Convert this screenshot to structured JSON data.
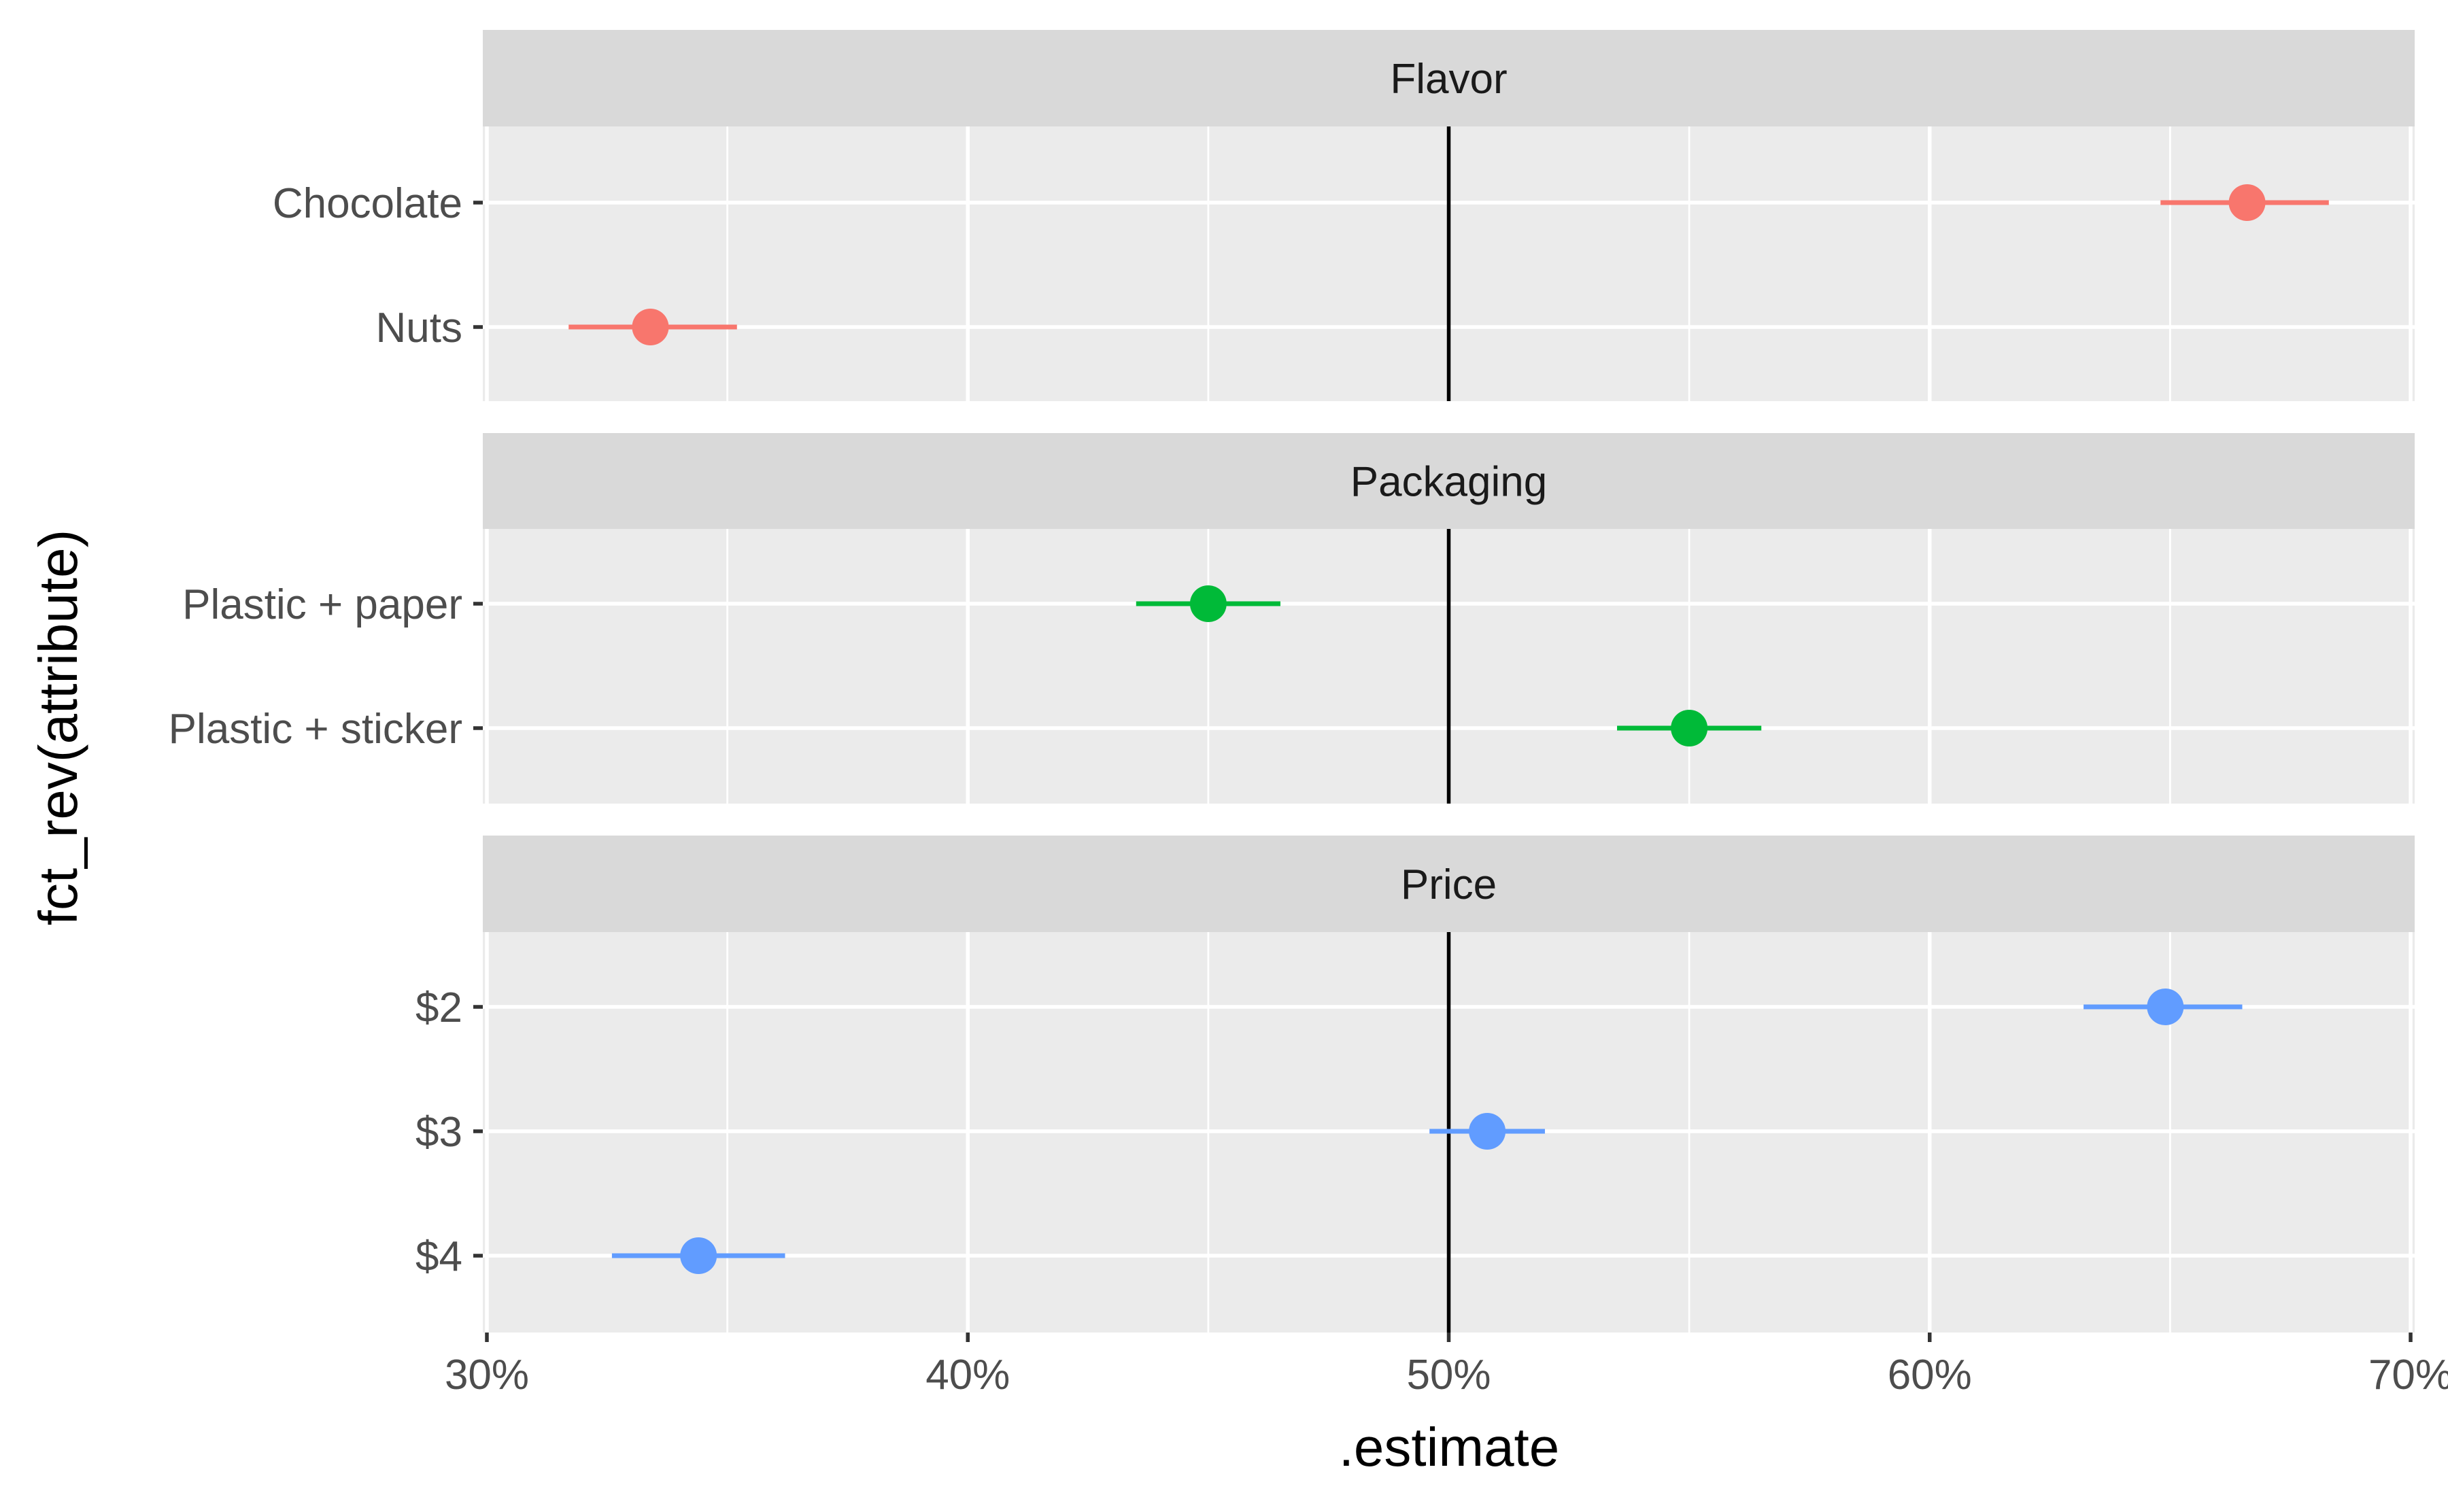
{
  "chart_data": {
    "type": "scatter",
    "subtype": "faceted point-range",
    "xlabel": ".estimate",
    "ylabel": "fct_rev(attribute)",
    "xlim": [
      30,
      70
    ],
    "x_ticks": [
      30,
      40,
      50,
      60,
      70
    ],
    "x_tick_labels": [
      "30%",
      "40%",
      "50%",
      "60%",
      "70%"
    ],
    "reference_line_x": 50,
    "grid": true,
    "legend": "none",
    "facets": [
      {
        "name": "Flavor",
        "color": "#F8766D",
        "levels": [
          {
            "label": "Chocolate",
            "estimate": 66.6,
            "lower": 64.8,
            "upper": 68.3
          },
          {
            "label": "Nuts",
            "estimate": 33.4,
            "lower": 31.7,
            "upper": 35.2
          }
        ]
      },
      {
        "name": "Packaging",
        "color": "#00BA38",
        "levels": [
          {
            "label": "Plastic + paper",
            "estimate": 45.0,
            "lower": 43.5,
            "upper": 46.5
          },
          {
            "label": "Plastic + sticker",
            "estimate": 55.0,
            "lower": 53.5,
            "upper": 56.5
          }
        ]
      },
      {
        "name": "Price",
        "color": "#619CFF",
        "levels": [
          {
            "label": "$2",
            "estimate": 64.9,
            "lower": 63.2,
            "upper": 66.5
          },
          {
            "label": "$3",
            "estimate": 50.8,
            "lower": 49.6,
            "upper": 52.0
          },
          {
            "label": "$4",
            "estimate": 34.4,
            "lower": 32.6,
            "upper": 36.2
          }
        ]
      }
    ]
  }
}
